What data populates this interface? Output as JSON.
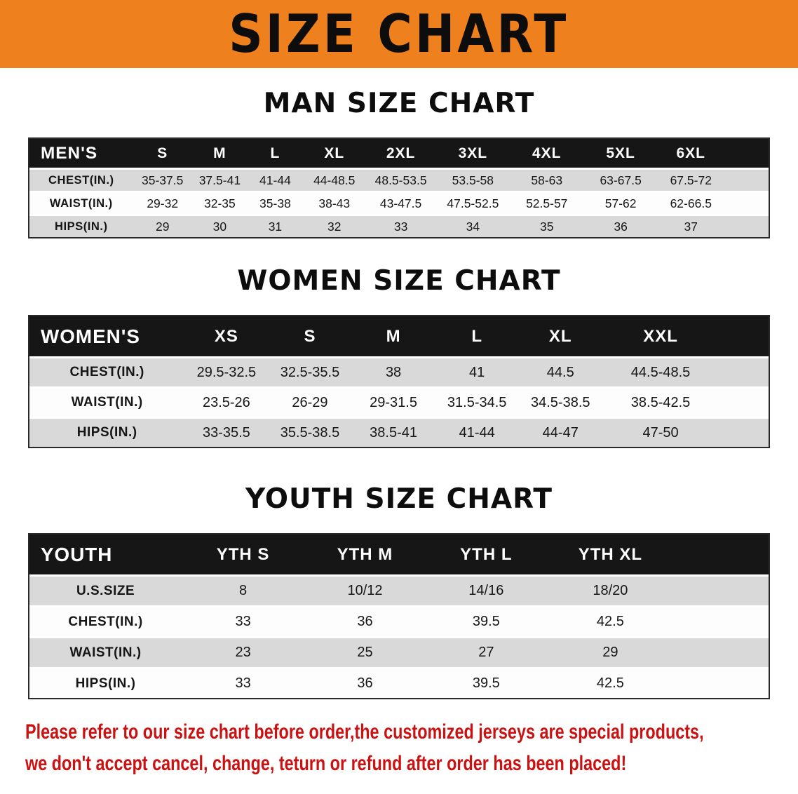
{
  "banner": {
    "title": "SIZE CHART"
  },
  "men": {
    "heading": "MAN SIZE CHART",
    "columns": [
      "MEN'S",
      "S",
      "M",
      "L",
      "XL",
      "2XL",
      "3XL",
      "4XL",
      "5XL",
      "6XL"
    ],
    "rows": [
      [
        "CHEST(IN.)",
        "35-37.5",
        "37.5-41",
        "41-44",
        "44-48.5",
        "48.5-53.5",
        "53.5-58",
        "58-63",
        "63-67.5",
        "67.5-72"
      ],
      [
        "WAIST(IN.)",
        "29-32",
        "32-35",
        "35-38",
        "38-43",
        "43-47.5",
        "47.5-52.5",
        "52.5-57",
        "57-62",
        "62-66.5"
      ],
      [
        "HIPS(IN.)",
        "29",
        "30",
        "31",
        "32",
        "33",
        "34",
        "35",
        "36",
        "37"
      ]
    ]
  },
  "women": {
    "heading": "WOMEN SIZE CHART",
    "columns": [
      "WOMEN'S",
      "XS",
      "S",
      "M",
      "L",
      "XL",
      "XXL"
    ],
    "rows": [
      [
        "CHEST(IN.)",
        "29.5-32.5",
        "32.5-35.5",
        "38",
        "41",
        "44.5",
        "44.5-48.5"
      ],
      [
        "WAIST(IN.)",
        "23.5-26",
        "26-29",
        "29-31.5",
        "31.5-34.5",
        "34.5-38.5",
        "38.5-42.5"
      ],
      [
        "HIPS(IN.)",
        "33-35.5",
        "35.5-38.5",
        "38.5-41",
        "41-44",
        "44-47",
        "47-50"
      ]
    ]
  },
  "youth": {
    "heading": "YOUTH SIZE CHART",
    "columns": [
      "YOUTH",
      "YTH S",
      "YTH M",
      "YTH L",
      "YTH XL"
    ],
    "rows": [
      [
        "U.S.SIZE",
        "8",
        "10/12",
        "14/16",
        "18/20"
      ],
      [
        "CHEST(IN.)",
        "33",
        "36",
        "39.5",
        "42.5"
      ],
      [
        "WAIST(IN.)",
        "23",
        "25",
        "27",
        "29"
      ],
      [
        "HIPS(IN.)",
        "33",
        "36",
        "39.5",
        "42.5"
      ]
    ]
  },
  "note": {
    "line1": "Please refer to our size chart before order,the customized jerseys are special products,",
    "line2": "we don't accept cancel, change, teturn or refund after order has been placed!"
  },
  "colors": {
    "banner_orange": "#ef801e",
    "table_header_black": "#161616",
    "row_shade_gray": "#d9d9d9",
    "note_red": "#cb1212"
  }
}
